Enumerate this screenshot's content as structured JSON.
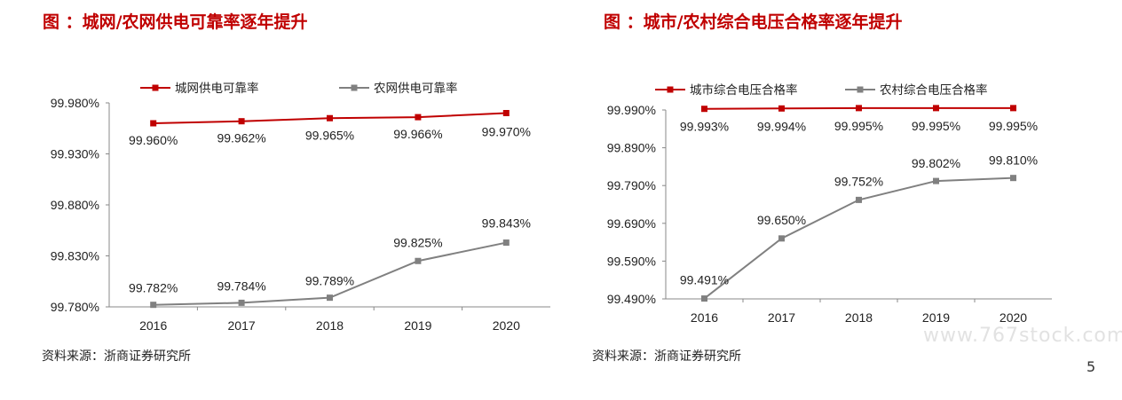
{
  "page": {
    "watermark": "www.767stock.com",
    "page_number": "5"
  },
  "chart_data": [
    {
      "type": "line",
      "title": "图  ：城网/农网供电可靠率逐年提升",
      "categories": [
        "2016",
        "2017",
        "2018",
        "2019",
        "2020"
      ],
      "series": [
        {
          "name": "城网供电可靠率",
          "color": "#c00000",
          "values": [
            99.96,
            99.962,
            99.965,
            99.966,
            99.97
          ],
          "labels": [
            "99.960%",
            "99.962%",
            "99.965%",
            "99.966%",
            "99.970%"
          ]
        },
        {
          "name": "农网供电可靠率",
          "color": "#808080",
          "values": [
            99.782,
            99.784,
            99.789,
            99.825,
            99.843
          ],
          "labels": [
            "99.782%",
            "99.784%",
            "99.789%",
            "99.825%",
            "99.843%"
          ]
        }
      ],
      "ylim": [
        99.78,
        99.98
      ],
      "yticks": [
        99.98,
        99.93,
        99.88,
        99.83,
        99.78
      ],
      "ytick_labels": [
        "99.980%",
        "99.930%",
        "99.880%",
        "99.830%",
        "99.780%"
      ],
      "legend": "top",
      "grid": false,
      "source": "资料来源：浙商证券研究所"
    },
    {
      "type": "line",
      "title": "图  ：城市/农村综合电压合格率逐年提升",
      "categories": [
        "2016",
        "2017",
        "2018",
        "2019",
        "2020"
      ],
      "series": [
        {
          "name": "城市综合电压合格率",
          "color": "#c00000",
          "values": [
            99.993,
            99.994,
            99.995,
            99.995,
            99.995
          ],
          "labels": [
            "99.993%",
            "99.994%",
            "99.995%",
            "99.995%",
            "99.995%"
          ]
        },
        {
          "name": "农村综合电压合格率",
          "color": "#808080",
          "values": [
            99.491,
            99.65,
            99.752,
            99.802,
            99.81
          ],
          "labels": [
            "99.491%",
            "99.650%",
            "99.752%",
            "99.802%",
            "99.810%"
          ]
        }
      ],
      "ylim": [
        99.49,
        99.99
      ],
      "yticks": [
        99.99,
        99.89,
        99.79,
        99.69,
        99.59,
        99.49
      ],
      "ytick_labels": [
        "99.990%",
        "99.890%",
        "99.790%",
        "99.690%",
        "99.590%",
        "99.490%"
      ],
      "legend": "top",
      "grid": false,
      "source": "资料来源：浙商证券研究所"
    }
  ]
}
